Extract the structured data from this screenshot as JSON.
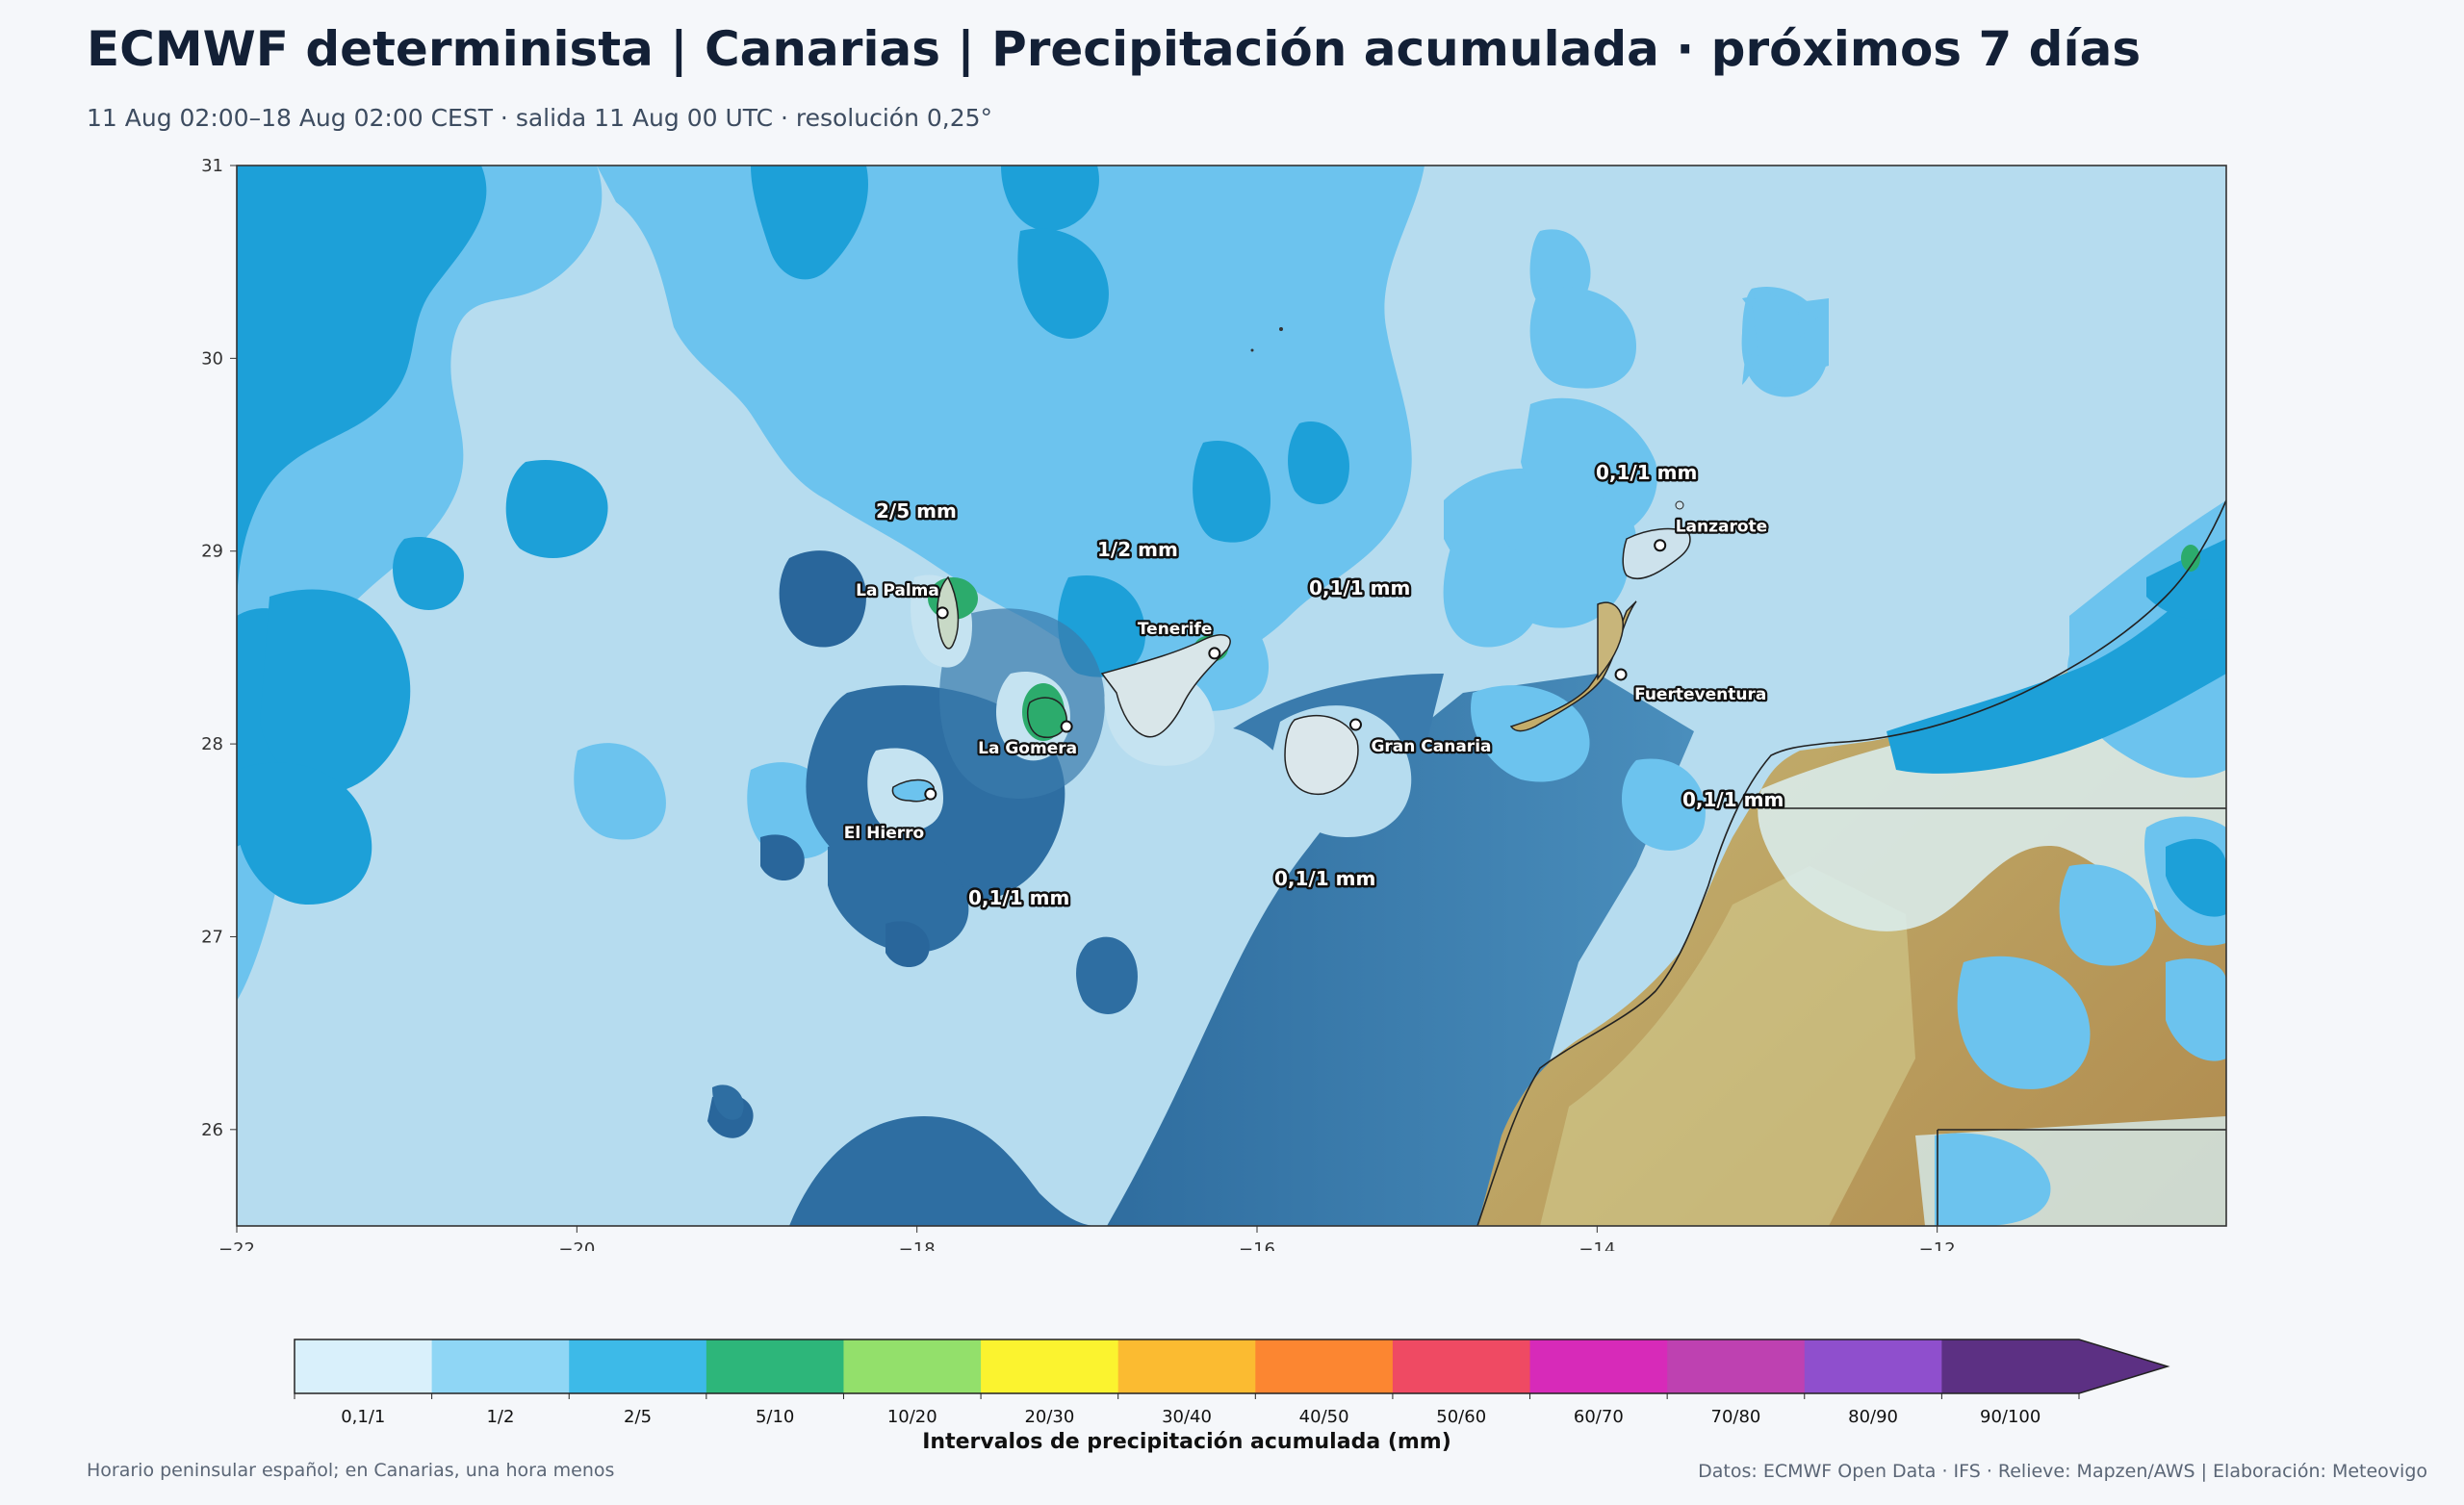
{
  "title": "ECMWF determinista | Canarias | Precipitación acumulada · próximos 7 días",
  "subtitle": "11 Aug 02:00–18 Aug 02:00 CEST · salida 11 Aug 00 UTC · resolución 0,25°",
  "map": {
    "x_ticks": [
      "−22",
      "−20",
      "−18",
      "−16",
      "−14",
      "−12"
    ],
    "y_ticks": [
      "31",
      "30",
      "29",
      "28",
      "27",
      "26"
    ],
    "lon_range": [
      -22,
      -10.3
    ],
    "lat_range": [
      25.5,
      31
    ],
    "islands": [
      {
        "name": "La Palma",
        "lon": -17.85,
        "lat": 28.68
      },
      {
        "name": "Tenerife",
        "lon": -16.25,
        "lat": 28.47
      },
      {
        "name": "La Gomera",
        "lon": -17.12,
        "lat": 28.09
      },
      {
        "name": "El Hierro",
        "lon": -17.92,
        "lat": 27.74
      },
      {
        "name": "Gran Canaria",
        "lon": -15.42,
        "lat": 28.1
      },
      {
        "name": "Lanzarote",
        "lon": -13.63,
        "lat": 29.03
      },
      {
        "name": "Fuerteventura",
        "lon": -13.86,
        "lat": 28.36
      }
    ],
    "area_labels": [
      "2/5 mm",
      "1/2 mm",
      "0,1/1 mm",
      "0,1/1 mm",
      "0,1/1 mm",
      "0,1/1 mm",
      "0,1/1 mm"
    ]
  },
  "colorbar": {
    "title": "Intervalos de precipitación acumulada (mm)",
    "classes": [
      {
        "label": "0,1/1",
        "color": "#d9f0fb"
      },
      {
        "label": "1/2",
        "color": "#8fd6f5"
      },
      {
        "label": "2/5",
        "color": "#3dbae8"
      },
      {
        "label": "5/10",
        "color": "#2db67a"
      },
      {
        "label": "10/20",
        "color": "#93e06b"
      },
      {
        "label": "20/30",
        "color": "#fbf32f"
      },
      {
        "label": "30/40",
        "color": "#fbbb31"
      },
      {
        "label": "40/50",
        "color": "#fc8631"
      },
      {
        "label": "50/60",
        "color": "#ef4a63"
      },
      {
        "label": "60/70",
        "color": "#d72ab9"
      },
      {
        "label": "70/80",
        "color": "#be41b1"
      },
      {
        "label": "80/90",
        "color": "#8f4fcd"
      },
      {
        "label": "90/100",
        "color": "#5c3083"
      }
    ]
  },
  "footer": {
    "left": "Horario peninsular español; en Canarias, una hora menos",
    "right": "Datos: ECMWF Open Data · IFS · Relieve: Mapzen/AWS | Elaboración: Meteovigo"
  }
}
